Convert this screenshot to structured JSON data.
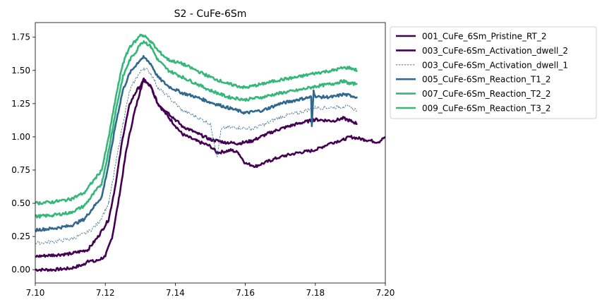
{
  "chart_data": {
    "type": "line",
    "title": "S2 - CuFe-6Sm",
    "xlabel": "",
    "ylabel": "",
    "xlim": [
      7.1,
      7.2
    ],
    "ylim": [
      -0.1,
      1.86
    ],
    "x_ticks": [
      "7.10",
      "7.12",
      "7.14",
      "7.16",
      "7.18",
      "7.20"
    ],
    "x_tick_values": [
      7.1,
      7.12,
      7.14,
      7.16,
      7.18,
      7.2
    ],
    "y_ticks": [
      "0.00",
      "0.25",
      "0.50",
      "0.75",
      "1.00",
      "1.25",
      "1.50",
      "1.75"
    ],
    "y_tick_values": [
      0.0,
      0.25,
      0.5,
      0.75,
      1.0,
      1.25,
      1.5,
      1.75
    ],
    "grid": false,
    "legend_position": "outside-right",
    "series": [
      {
        "name": "001_CuFe_6Sm_Pristine_RT_2",
        "color": "#440154",
        "style": "solid",
        "x": [
          7.1,
          7.105,
          7.11,
          7.114,
          7.115,
          7.117,
          7.12,
          7.122,
          7.124,
          7.126,
          7.128,
          7.13,
          7.131,
          7.133,
          7.135,
          7.138,
          7.142,
          7.146,
          7.15,
          7.152,
          7.156,
          7.158,
          7.16,
          7.163,
          7.167,
          7.17,
          7.175,
          7.18,
          7.184,
          7.188,
          7.19,
          7.194,
          7.198,
          7.2
        ],
        "y": [
          0.0,
          0.0,
          0.01,
          0.04,
          0.07,
          0.06,
          0.1,
          0.25,
          0.55,
          0.9,
          1.15,
          1.35,
          1.44,
          1.38,
          1.25,
          1.15,
          1.02,
          0.97,
          0.93,
          0.88,
          0.9,
          0.88,
          0.8,
          0.78,
          0.82,
          0.85,
          0.88,
          0.9,
          0.95,
          0.98,
          1.0,
          0.98,
          0.96,
          1.0
        ]
      },
      {
        "name": "003_CuFe-6Sm_Activation_dwell_2",
        "color": "#440154",
        "style": "solid",
        "x": [
          7.1,
          7.105,
          7.11,
          7.115,
          7.118,
          7.121,
          7.123,
          7.125,
          7.127,
          7.129,
          7.131,
          7.133,
          7.135,
          7.138,
          7.142,
          7.146,
          7.15,
          7.154,
          7.158,
          7.162,
          7.166,
          7.17,
          7.175,
          7.18,
          7.185,
          7.188,
          7.19,
          7.192
        ],
        "y": [
          0.1,
          0.11,
          0.12,
          0.15,
          0.25,
          0.38,
          0.65,
          1.0,
          1.25,
          1.35,
          1.42,
          1.38,
          1.25,
          1.18,
          1.08,
          1.03,
          0.98,
          0.96,
          0.95,
          0.97,
          1.02,
          1.06,
          1.1,
          1.13,
          1.12,
          1.14,
          1.12,
          1.1
        ]
      },
      {
        "name": "003_CuFe-6Sm_Activation_dwell_1",
        "color": "#31688e",
        "style": "dashed",
        "x": [
          7.1,
          7.105,
          7.11,
          7.115,
          7.118,
          7.121,
          7.123,
          7.125,
          7.127,
          7.129,
          7.131,
          7.133,
          7.135,
          7.138,
          7.142,
          7.146,
          7.15,
          7.152,
          7.153,
          7.154,
          7.158,
          7.162,
          7.166,
          7.17,
          7.175,
          7.18,
          7.185,
          7.188,
          7.19,
          7.192
        ],
        "y": [
          0.2,
          0.21,
          0.23,
          0.28,
          0.35,
          0.5,
          0.8,
          1.1,
          1.35,
          1.45,
          1.52,
          1.48,
          1.37,
          1.3,
          1.2,
          1.15,
          1.1,
          0.85,
          1.05,
          1.07,
          1.07,
          1.06,
          1.1,
          1.15,
          1.18,
          1.22,
          1.22,
          1.23,
          1.22,
          1.2
        ]
      },
      {
        "name": "005_CuFe-6Sm_Reaction_T1_2",
        "color": "#31688e",
        "style": "solid",
        "x": [
          7.1,
          7.105,
          7.11,
          7.114,
          7.116,
          7.119,
          7.121,
          7.123,
          7.125,
          7.127,
          7.129,
          7.13,
          7.131,
          7.133,
          7.135,
          7.138,
          7.142,
          7.146,
          7.15,
          7.155,
          7.16,
          7.165,
          7.17,
          7.175,
          7.1788,
          7.179,
          7.1795,
          7.18,
          7.185,
          7.188,
          7.19,
          7.192
        ],
        "y": [
          0.3,
          0.31,
          0.33,
          0.38,
          0.45,
          0.55,
          0.8,
          1.1,
          1.35,
          1.48,
          1.55,
          1.58,
          1.6,
          1.55,
          1.45,
          1.38,
          1.33,
          1.3,
          1.26,
          1.22,
          1.18,
          1.2,
          1.25,
          1.28,
          1.3,
          1.08,
          1.35,
          1.3,
          1.3,
          1.32,
          1.31,
          1.3
        ]
      },
      {
        "name": "007_CuFe-6Sm_Reaction_T2_2",
        "color": "#35b779",
        "style": "solid",
        "x": [
          7.1,
          7.105,
          7.11,
          7.114,
          7.116,
          7.119,
          7.121,
          7.123,
          7.125,
          7.127,
          7.129,
          7.13,
          7.131,
          7.133,
          7.135,
          7.138,
          7.142,
          7.146,
          7.15,
          7.155,
          7.16,
          7.165,
          7.17,
          7.175,
          7.18,
          7.185,
          7.188,
          7.19,
          7.192
        ],
        "y": [
          0.4,
          0.41,
          0.43,
          0.48,
          0.55,
          0.65,
          0.9,
          1.2,
          1.45,
          1.58,
          1.65,
          1.7,
          1.72,
          1.68,
          1.58,
          1.5,
          1.45,
          1.4,
          1.35,
          1.3,
          1.28,
          1.3,
          1.33,
          1.35,
          1.38,
          1.4,
          1.42,
          1.4,
          1.4
        ]
      },
      {
        "name": "009_CuFe-6Sm_Reaction_T3_2",
        "color": "#35b779",
        "style": "solid",
        "x": [
          7.1,
          7.105,
          7.11,
          7.114,
          7.116,
          7.119,
          7.121,
          7.123,
          7.125,
          7.127,
          7.129,
          7.13,
          7.131,
          7.133,
          7.135,
          7.138,
          7.142,
          7.146,
          7.15,
          7.155,
          7.16,
          7.165,
          7.17,
          7.175,
          7.18,
          7.185,
          7.188,
          7.19,
          7.192
        ],
        "y": [
          0.5,
          0.51,
          0.53,
          0.58,
          0.65,
          0.75,
          1.0,
          1.3,
          1.55,
          1.68,
          1.73,
          1.77,
          1.76,
          1.72,
          1.65,
          1.58,
          1.55,
          1.5,
          1.45,
          1.4,
          1.37,
          1.4,
          1.43,
          1.45,
          1.48,
          1.5,
          1.52,
          1.52,
          1.5
        ]
      }
    ]
  }
}
